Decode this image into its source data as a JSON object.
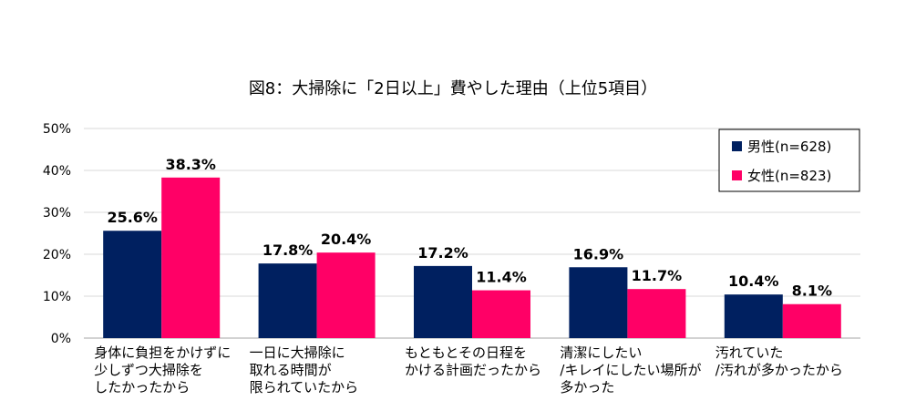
{
  "chart_data": {
    "type": "bar",
    "title": "図8：大掃除に「2日以上」費やした理由（上位5項目）",
    "categories": [
      [
        "身体に負担をかけずに",
        "少しずつ大掃除を",
        "したかったから"
      ],
      [
        "一日に大掃除に",
        "取れる時間が",
        "限られていたから"
      ],
      [
        "もともとその日程を",
        "かける計画だったから"
      ],
      [
        "清潔にしたい",
        "/キレイにしたい場所が",
        "多かった"
      ],
      [
        "汚れていた",
        "/汚れが多かったから"
      ]
    ],
    "series": [
      {
        "name": "男性(n=628)",
        "color": "#002060",
        "values": [
          25.6,
          17.8,
          17.2,
          16.9,
          10.4
        ],
        "labels": [
          "25.6%",
          "17.8%",
          "17.2%",
          "16.9%",
          "10.4%"
        ]
      },
      {
        "name": "女性(n=823)",
        "color": "#FF0066",
        "values": [
          38.3,
          20.4,
          11.4,
          11.7,
          8.1
        ],
        "labels": [
          "38.3%",
          "20.4%",
          "11.4%",
          "11.7%",
          "8.1%"
        ]
      }
    ],
    "ylim": [
      0,
      50
    ],
    "yticks": [
      "0%",
      "10%",
      "20%",
      "30%",
      "40%",
      "50%"
    ],
    "xlabel": "",
    "ylabel": "",
    "grid": true,
    "legend": "top-right"
  }
}
